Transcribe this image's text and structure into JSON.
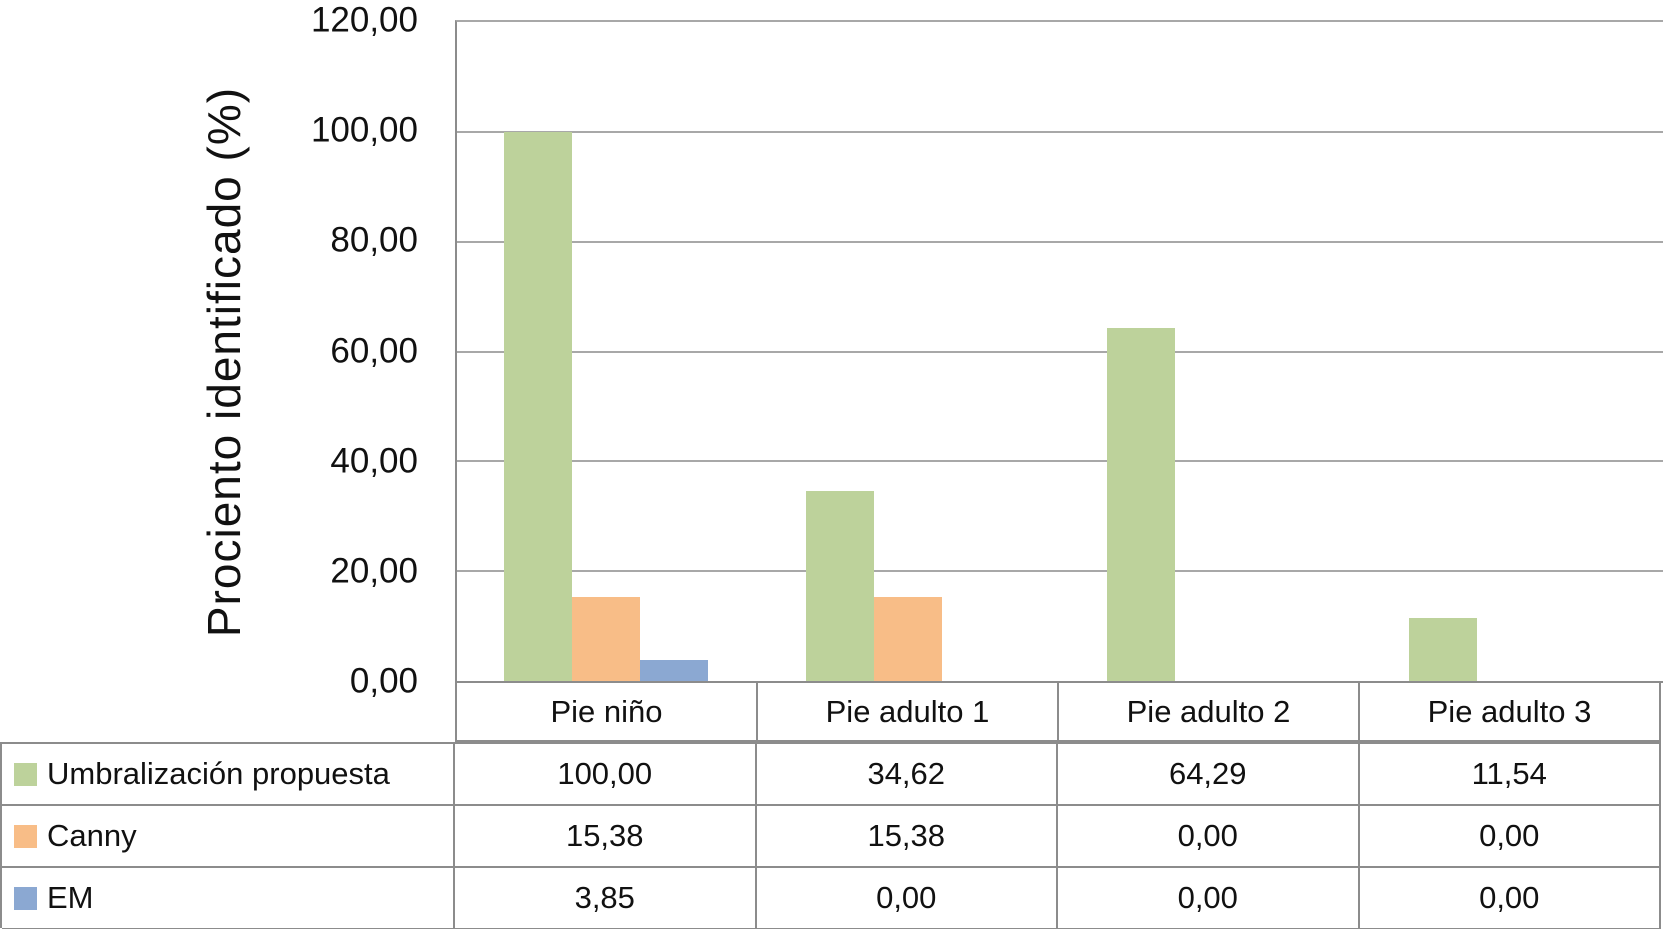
{
  "chart_data": {
    "type": "bar",
    "title": "",
    "ylabel": "Prociento identificado (%)",
    "xlabel": "",
    "ylim": [
      0,
      120
    ],
    "ytick_step": 20,
    "yticks": [
      "0,00",
      "20,00",
      "40,00",
      "60,00",
      "80,00",
      "100,00",
      "120,00"
    ],
    "grid": true,
    "legend_position": "data-table-left-column",
    "categories": [
      "Pie niño",
      "Pie adulto 1",
      "Pie adulto 2",
      "Pie adulto 3"
    ],
    "series": [
      {
        "name": "Umbralización propuesta",
        "color": "#BDD29B",
        "values": [
          100.0,
          34.62,
          64.29,
          11.54
        ],
        "display": [
          "100,00",
          "34,62",
          "64,29",
          "11,54"
        ]
      },
      {
        "name": "Canny",
        "color": "#F8BD87",
        "values": [
          15.38,
          15.38,
          0.0,
          0.0
        ],
        "display": [
          "15,38",
          "15,38",
          "0,00",
          "0,00"
        ]
      },
      {
        "name": "EM",
        "color": "#8BA8D2",
        "values": [
          3.85,
          0.0,
          0.0,
          0.0
        ],
        "display": [
          "3,85",
          "0,00",
          "0,00",
          "0,00"
        ]
      }
    ]
  },
  "style": {
    "grid_color": "#A8A8A8",
    "border_color": "#8C8C8C",
    "text_color": "#111111",
    "background": "#FFFFFF"
  }
}
